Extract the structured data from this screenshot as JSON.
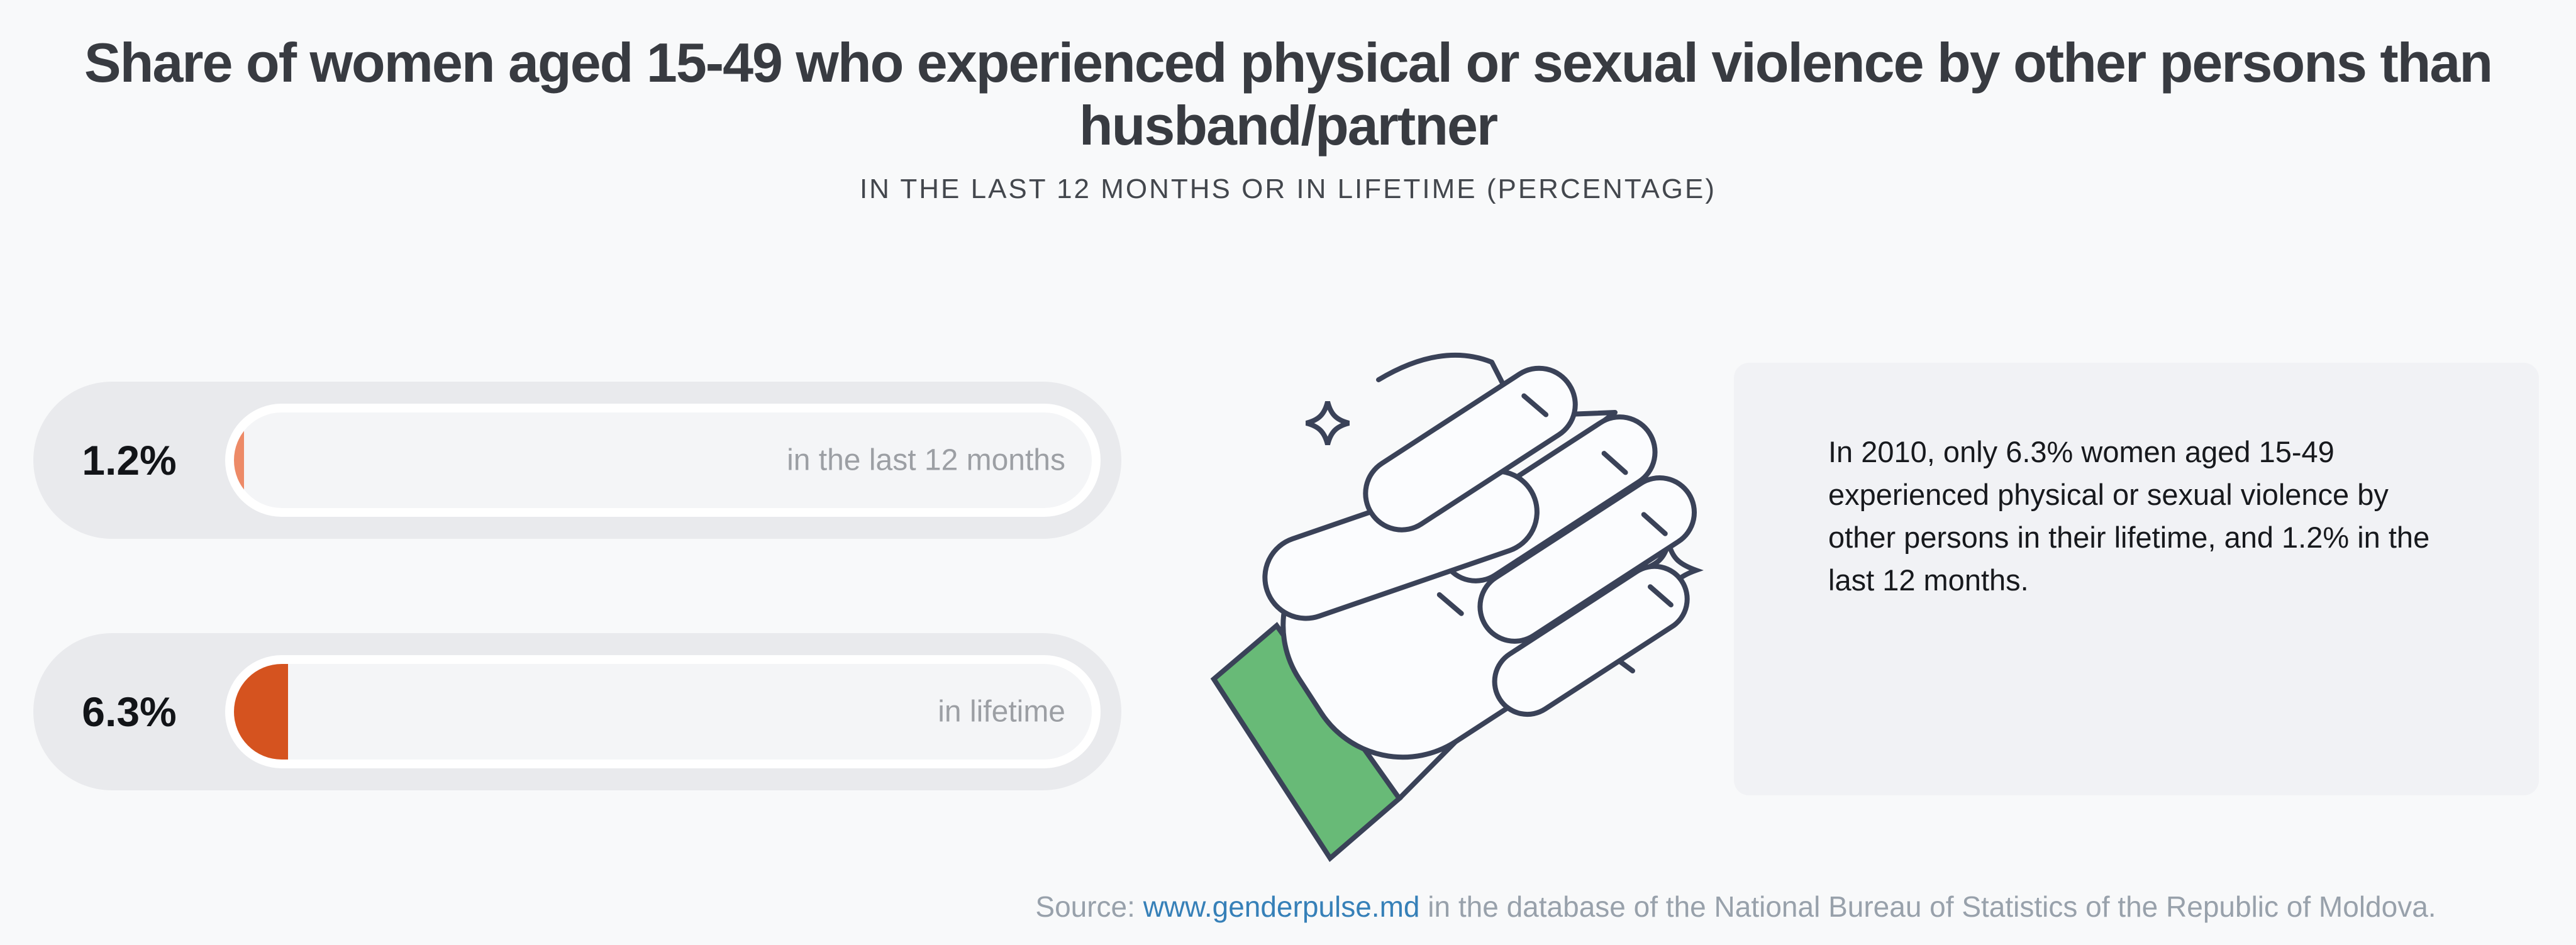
{
  "page": {
    "background_color": "#F8F9FA"
  },
  "header": {
    "title": "Share of women aged 15-49 who experienced physical or sexual violence by other persons than husband/partner",
    "subtitle": "IN THE LAST 12 MONTHS OR IN LIFETIME (PERCENTAGE)"
  },
  "chart_data": {
    "type": "bar",
    "orientation": "horizontal",
    "title": "Share of women aged 15-49 who experienced physical or sexual violence by other persons than husband/partner",
    "subtitle": "IN THE LAST 12 MONTHS OR IN LIFETIME (PERCENTAGE)",
    "categories": [
      "in the last 12 months",
      "in lifetime"
    ],
    "values": [
      1.2,
      6.3
    ],
    "value_labels": [
      "1.2%",
      "6.3%"
    ],
    "unit": "percent",
    "xlim": [
      0,
      100
    ],
    "grid": false,
    "legend": false,
    "bar_colors": [
      "#ED8A67",
      "#D5531F"
    ],
    "track_color": "#F4F5F7",
    "pill_color": "#E9EAED"
  },
  "bars": [
    {
      "value_label": "1.2%",
      "caption": "in the last 12 months",
      "value_pct": 1.2,
      "fill_color": "#ED8A67"
    },
    {
      "value_label": "6.3%",
      "caption": "in lifetime",
      "value_pct": 6.3,
      "fill_color": "#D5531F"
    }
  ],
  "annotation": {
    "text": "In 2010, only 6.3% women aged 15-49 experienced physical or sexual violence by other persons in their lifetime, and 1.2% in the last 12 months."
  },
  "illustration": {
    "name": "fist-punch-illustration",
    "outline_color": "#3A4258",
    "sleeve_color": "#68BA77",
    "hand_fill_color": "#FBFCFE"
  },
  "footer": {
    "source_prefix": "Source: ",
    "link_text": "www.genderpulse.md",
    "source_suffix": " in the database of the National Bureau of Statistics of the Republic of Moldova.",
    "link_color": "#3680B8"
  }
}
